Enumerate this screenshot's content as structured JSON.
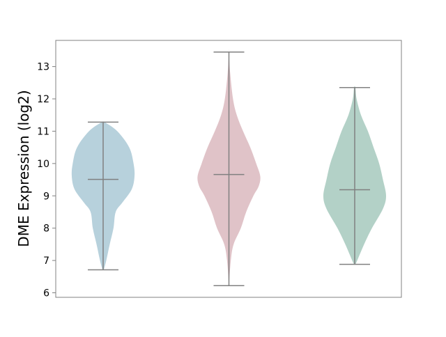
{
  "chart_data": {
    "type": "violin",
    "title": "",
    "xlabel": "",
    "ylabel": "DME Expression (log2)",
    "ylim": [
      5.86,
      13.81
    ],
    "yticks": [
      6,
      7,
      8,
      9,
      10,
      11,
      12,
      13
    ],
    "grid": false,
    "line_color": "#808080",
    "series": [
      {
        "color": "#b7d1dc",
        "min": 6.71,
        "max": 11.28,
        "median": 9.51,
        "density": [
          [
            6.71,
            0.02
          ],
          [
            7,
            0.1
          ],
          [
            7.5,
            0.21
          ],
          [
            8,
            0.33
          ],
          [
            8.5,
            0.4
          ],
          [
            8.8,
            0.62
          ],
          [
            9.2,
            0.91
          ],
          [
            9.6,
            1
          ],
          [
            10,
            0.97
          ],
          [
            10.5,
            0.83
          ],
          [
            11,
            0.45
          ],
          [
            11.28,
            0.04
          ]
        ]
      },
      {
        "color": "#e0c3c8",
        "min": 6.22,
        "max": 13.45,
        "median": 9.66,
        "density": [
          [
            6.22,
            0
          ],
          [
            7,
            0.06
          ],
          [
            7.5,
            0.15
          ],
          [
            8,
            0.38
          ],
          [
            8.5,
            0.55
          ],
          [
            9,
            0.78
          ],
          [
            9.3,
            0.95
          ],
          [
            9.6,
            1
          ],
          [
            10,
            0.87
          ],
          [
            10.5,
            0.68
          ],
          [
            11,
            0.45
          ],
          [
            11.5,
            0.25
          ],
          [
            12,
            0.13
          ],
          [
            12.8,
            0.04
          ],
          [
            13.45,
            0
          ]
        ]
      },
      {
        "color": "#b3d1c7",
        "min": 6.88,
        "max": 12.35,
        "median": 9.19,
        "density": [
          [
            6.88,
            0.02
          ],
          [
            7,
            0.08
          ],
          [
            7.5,
            0.3
          ],
          [
            8,
            0.55
          ],
          [
            8.6,
            0.9
          ],
          [
            9,
            1
          ],
          [
            9.5,
            0.9
          ],
          [
            10,
            0.78
          ],
          [
            10.5,
            0.6
          ],
          [
            11,
            0.42
          ],
          [
            11.5,
            0.2
          ],
          [
            12,
            0.06
          ],
          [
            12.35,
            0.02
          ]
        ]
      }
    ]
  }
}
